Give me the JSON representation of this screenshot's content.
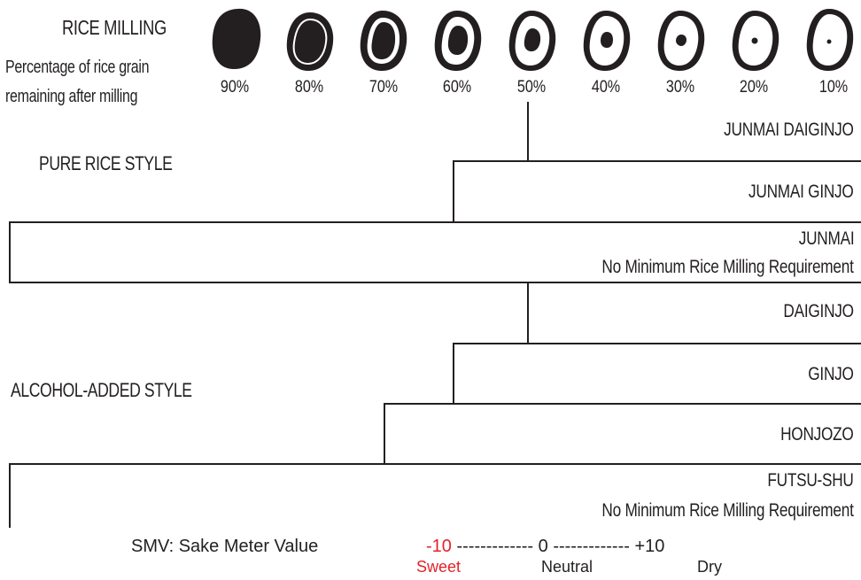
{
  "header": {
    "title": "RICE MILLING",
    "subtitle_line1": "Percentage of rice grain",
    "subtitle_line2": "remaining after milling"
  },
  "milling_levels": [
    "90%",
    "80%",
    "70%",
    "60%",
    "50%",
    "40%",
    "30%",
    "20%",
    "10%"
  ],
  "sections": {
    "pure": "PURE RICE STYLE",
    "alcohol": "ALCOHOL-ADDED STYLE"
  },
  "styles": {
    "junmai_daiginjo": "JUNMAI DAIGINJO",
    "junmai_ginjo": "JUNMAI GINJO",
    "junmai": "JUNMAI",
    "junmai_note": "No Minimum Rice Milling Requirement",
    "daiginjo": "DAIGINJO",
    "ginjo": "GINJO",
    "honjozo": "HONJOZO",
    "futsu_shu": "FUTSU-SHU",
    "futsu_note": "No Minimum Rice Milling Requirement"
  },
  "smv": {
    "label": "SMV: Sake Meter Value",
    "scale_min": "-10",
    "scale_mid": "0",
    "scale_max": "+10",
    "dash_left": "-------------",
    "dash_right": "-------------",
    "sweet": "Sweet",
    "neutral": "Neutral",
    "dry": "Dry"
  },
  "colors": {
    "ink": "#231f20",
    "sweet": "#e2232a"
  }
}
